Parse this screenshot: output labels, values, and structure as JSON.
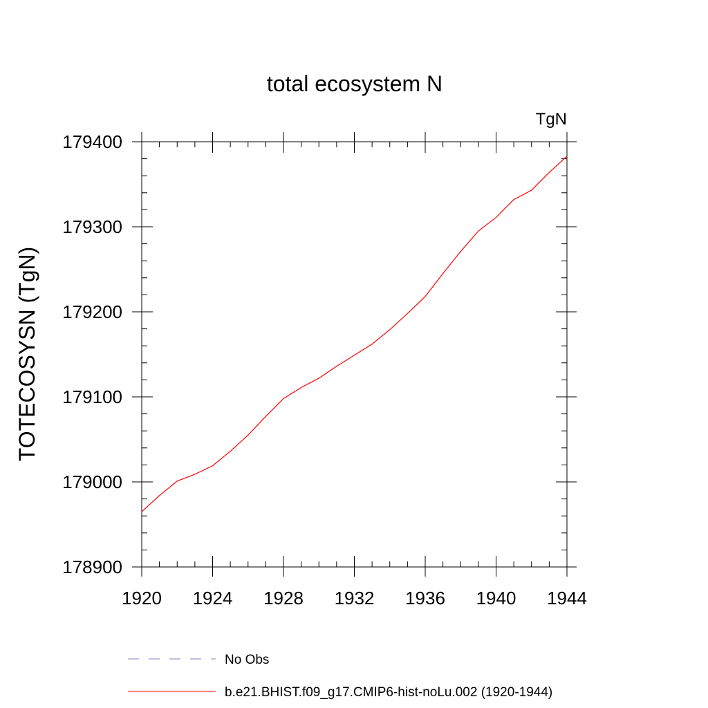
{
  "chart_data": {
    "type": "line",
    "title": "total ecosystem N",
    "units_label": "TgN",
    "ylabel": "TOTECOSYSN  (TgN)",
    "xlabel": "",
    "xlim": [
      1920,
      1944
    ],
    "ylim": [
      178900,
      179400
    ],
    "x_ticks": [
      1920,
      1924,
      1928,
      1932,
      1936,
      1940,
      1944
    ],
    "y_ticks": [
      178900,
      179000,
      179100,
      179200,
      179300,
      179400
    ],
    "grid": false,
    "legend_position": "bottom",
    "series": [
      {
        "name": "No Obs",
        "color": "#8080c0",
        "dash": "dashed",
        "x": [],
        "values": []
      },
      {
        "name": "b.e21.BHIST.f09_g17.CMIP6-hist-noLu.002 (1920-1944)",
        "color": "#ff0000",
        "dash": "solid",
        "x": [
          1920,
          1921,
          1922,
          1923,
          1924,
          1925,
          1926,
          1927,
          1928,
          1929,
          1930,
          1931,
          1932,
          1933,
          1934,
          1935,
          1936,
          1937,
          1938,
          1939,
          1940,
          1941,
          1942,
          1943,
          1944
        ],
        "values": [
          178965,
          178984,
          179001,
          179009,
          179019,
          179036,
          179055,
          179077,
          179098,
          179111,
          179122,
          179136,
          179149,
          179162,
          179179,
          179198,
          179218,
          179245,
          179271,
          179295,
          179311,
          179332,
          179343,
          179364,
          179383
        ]
      }
    ]
  }
}
